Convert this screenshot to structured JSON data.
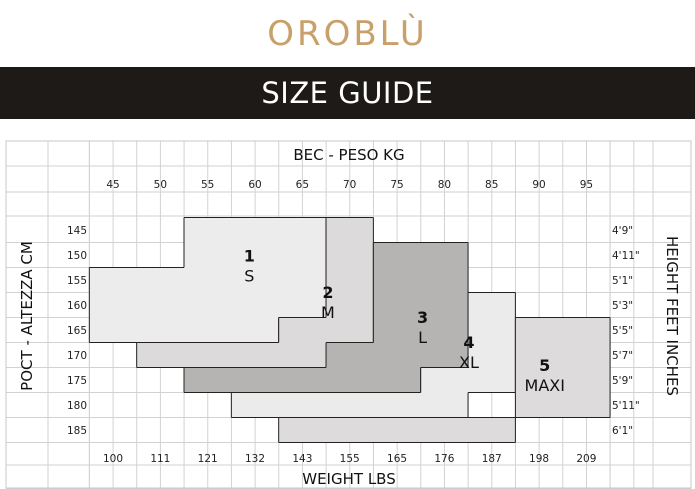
{
  "brand": {
    "name": "OROBLÙ",
    "color": "#c8a06a"
  },
  "banner": {
    "title": "SIZE GUIDE",
    "background": "#1d1a17"
  },
  "chart_data": {
    "type": "heatmap",
    "title": "SIZE GUIDE",
    "x_top_label": "BEC - PESO KG",
    "x_bottom_label": "WEIGHT LBS",
    "y_left_label": "POCT - ALTEZZA CM",
    "y_right_label": "HEIGHT FEET INCHES",
    "x_kg": [
      45,
      50,
      55,
      60,
      65,
      70,
      75,
      80,
      85,
      90,
      95
    ],
    "x_lbs": [
      "100",
      "111",
      "121",
      "132",
      "143",
      "155",
      "165",
      "176",
      "187",
      "198",
      "209"
    ],
    "y_cm": [
      145,
      150,
      155,
      160,
      165,
      170,
      175,
      180,
      185
    ],
    "y_ft": [
      "4'9\"",
      "4'11\"",
      "5'1\"",
      "5'3\"",
      "5'5\"",
      "5'7\"",
      "5'9\"",
      "5'11\"",
      "6'1\""
    ],
    "grid": true,
    "sizes": [
      {
        "number": "1",
        "label": "S",
        "color": "#ececec",
        "rows": [
          {
            "cm": 145,
            "kg": [
              55,
              65
            ]
          },
          {
            "cm": 150,
            "kg": [
              55,
              65
            ]
          },
          {
            "cm": 155,
            "kg": [
              45,
              65
            ]
          },
          {
            "cm": 160,
            "kg": [
              45,
              65
            ]
          },
          {
            "cm": 165,
            "kg": [
              45,
              60
            ]
          }
        ]
      },
      {
        "number": "2",
        "label": "M",
        "color": "#dcdada",
        "rows": [
          {
            "cm": 145,
            "kg": [
              70,
              70
            ]
          },
          {
            "cm": 150,
            "kg": [
              70,
              70
            ]
          },
          {
            "cm": 155,
            "kg": [
              70,
              70
            ]
          },
          {
            "cm": 160,
            "kg": [
              70,
              70
            ]
          },
          {
            "cm": 165,
            "kg": [
              65,
              70
            ]
          },
          {
            "cm": 170,
            "kg": [
              50,
              70
            ]
          }
        ]
      },
      {
        "number": "3",
        "label": "L",
        "color": "#b6b4b3",
        "rows": [
          {
            "cm": 150,
            "kg": [
              75,
              80
            ]
          },
          {
            "cm": 155,
            "kg": [
              75,
              80
            ]
          },
          {
            "cm": 160,
            "kg": [
              75,
              80
            ]
          },
          {
            "cm": 165,
            "kg": [
              75,
              80
            ]
          },
          {
            "cm": 170,
            "kg": [
              70,
              80
            ]
          },
          {
            "cm": 175,
            "kg": [
              55,
              75
            ]
          }
        ]
      },
      {
        "number": "4",
        "label": "XL",
        "color": "#ebebeb",
        "rows": [
          {
            "cm": 160,
            "kg": [
              85,
              85
            ]
          },
          {
            "cm": 165,
            "kg": [
              85,
              85
            ]
          },
          {
            "cm": 170,
            "kg": [
              85,
              85
            ]
          },
          {
            "cm": 175,
            "kg": [
              80,
              85
            ]
          },
          {
            "cm": 180,
            "kg": [
              60,
              80
            ]
          }
        ]
      },
      {
        "number": "5",
        "label": "MAXI",
        "color": "#dddbdb",
        "rows": [
          {
            "cm": 165,
            "kg": [
              90,
              95
            ]
          },
          {
            "cm": 170,
            "kg": [
              90,
              95
            ]
          },
          {
            "cm": 175,
            "kg": [
              90,
              95
            ]
          },
          {
            "cm": 180,
            "kg": [
              90,
              95
            ]
          },
          {
            "cm": 185,
            "kg": [
              65,
              85
            ]
          }
        ]
      }
    ]
  }
}
